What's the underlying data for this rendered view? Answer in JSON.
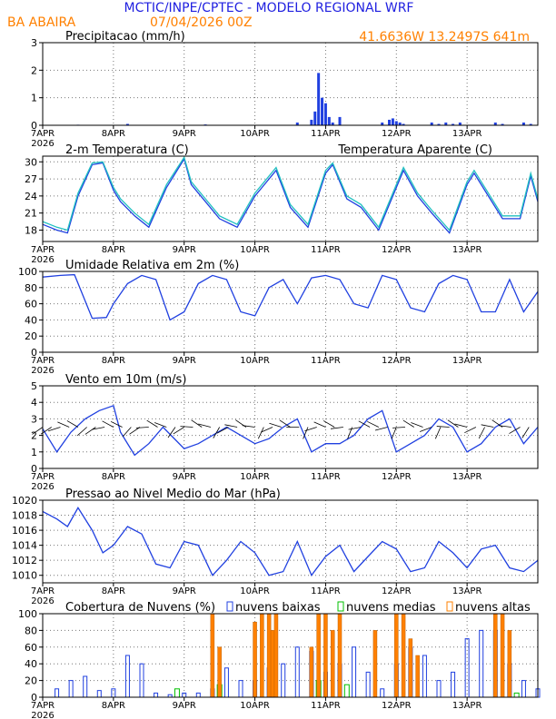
{
  "header": {
    "title": "MCTIC/INPE/CPTEC - MODELO REGIONAL WRF",
    "location": "BA ABAIRA",
    "run": "07/04/2026 00Z",
    "coords": "41.6636W 13.2497S 641m"
  },
  "colors": {
    "blue": "#2040e0",
    "cyan": "#20c0c0",
    "orange": "#ff8000",
    "green": "#00c000",
    "title_blue": "#2020e0"
  },
  "x_labels": [
    "7APR",
    "8APR",
    "9APR",
    "10APR",
    "11APR",
    "12APR",
    "13APR"
  ],
  "x_year": "2026",
  "chart_data": [
    {
      "type": "bar",
      "id": "precip",
      "title": "Precipitacao (mm/h)",
      "ylim": [
        0,
        3
      ],
      "yticks": [
        0,
        1,
        2,
        3
      ],
      "x": [
        0.5,
        1.2,
        2.3,
        3.6,
        3.8,
        3.85,
        3.9,
        3.95,
        4.0,
        4.05,
        4.1,
        4.2,
        4.8,
        4.9,
        4.95,
        5.0,
        5.05,
        5.1,
        5.5,
        5.6,
        5.7,
        5.8,
        5.9,
        6.4,
        6.5,
        6.8,
        6.9
      ],
      "values": [
        0.02,
        0.05,
        0.03,
        0.1,
        0.2,
        0.5,
        1.9,
        1.0,
        0.8,
        0.3,
        0.1,
        0.3,
        0.1,
        0.2,
        0.25,
        0.15,
        0.1,
        0.05,
        0.1,
        0.05,
        0.1,
        0.05,
        0.1,
        0.1,
        0.05,
        0.1,
        0.05
      ]
    },
    {
      "type": "line",
      "id": "temp",
      "title": "2-m Temperatura (C)",
      "legend_apparent": "Temperatura Aparente (C)",
      "ylim": [
        16,
        31
      ],
      "yticks": [
        18,
        21,
        24,
        27,
        30
      ],
      "series": [
        {
          "name": "Temperatura",
          "x": [
            0,
            0.1,
            0.2,
            0.35,
            0.5,
            0.7,
            0.85,
            1.0,
            1.1,
            1.3,
            1.5,
            1.75,
            2.0,
            2.1,
            2.3,
            2.5,
            2.75,
            3.0,
            3.1,
            3.3,
            3.5,
            3.75,
            4.0,
            4.1,
            4.3,
            4.5,
            4.75,
            5.0,
            5.1,
            5.3,
            5.5,
            5.75,
            6.0,
            6.1,
            6.3,
            6.5,
            6.75,
            6.9,
            7.0
          ],
          "values": [
            19.0,
            18.5,
            18.0,
            17.5,
            24.0,
            29.5,
            29.8,
            25.0,
            23.0,
            20.5,
            18.5,
            25.5,
            30.5,
            26.0,
            23.0,
            20.0,
            18.5,
            24.0,
            25.5,
            28.5,
            22.0,
            18.5,
            28.0,
            29.5,
            23.5,
            22.0,
            18.0,
            25.5,
            28.5,
            24.0,
            21.0,
            17.5,
            26.0,
            28.0,
            24.0,
            20.0,
            20.0,
            27.5,
            23.0
          ]
        },
        {
          "name": "Temperatura Aparente",
          "x": [
            0,
            0.1,
            0.2,
            0.35,
            0.5,
            0.7,
            0.85,
            1.0,
            1.1,
            1.3,
            1.5,
            1.75,
            2.0,
            2.1,
            2.3,
            2.5,
            2.75,
            3.0,
            3.1,
            3.3,
            3.5,
            3.75,
            4.0,
            4.1,
            4.3,
            4.5,
            4.75,
            5.0,
            5.1,
            5.3,
            5.5,
            5.75,
            6.0,
            6.1,
            6.3,
            6.5,
            6.75,
            6.9,
            7.0
          ],
          "values": [
            19.5,
            19.0,
            18.5,
            18.0,
            24.5,
            29.8,
            30.0,
            25.5,
            23.5,
            21.0,
            19.0,
            26.0,
            30.8,
            26.5,
            23.5,
            20.5,
            19.0,
            24.5,
            26.0,
            29.0,
            22.5,
            19.0,
            28.5,
            29.8,
            24.0,
            22.5,
            18.5,
            26.0,
            29.0,
            24.5,
            21.5,
            18.0,
            26.5,
            28.5,
            24.5,
            20.5,
            20.5,
            28.0,
            23.5
          ]
        }
      ]
    },
    {
      "type": "line",
      "id": "rh",
      "title": "Umidade Relativa em 2m (%)",
      "ylim": [
        0,
        100
      ],
      "yticks": [
        0,
        20,
        40,
        60,
        80,
        100
      ],
      "series": [
        {
          "name": "Umidade Relativa",
          "x": [
            0,
            0.25,
            0.45,
            0.7,
            0.9,
            1.0,
            1.2,
            1.4,
            1.6,
            1.8,
            2.0,
            2.2,
            2.4,
            2.6,
            2.8,
            3.0,
            3.2,
            3.4,
            3.6,
            3.8,
            4.0,
            4.2,
            4.4,
            4.6,
            4.8,
            5.0,
            5.2,
            5.4,
            5.6,
            5.8,
            6.0,
            6.2,
            6.4,
            6.6,
            6.8,
            7.0
          ],
          "values": [
            93,
            95,
            96,
            42,
            43,
            60,
            85,
            95,
            90,
            40,
            50,
            85,
            95,
            90,
            50,
            45,
            80,
            90,
            60,
            92,
            95,
            90,
            60,
            55,
            95,
            90,
            55,
            50,
            85,
            95,
            90,
            50,
            50,
            90,
            50,
            75
          ]
        }
      ]
    },
    {
      "type": "line",
      "id": "wind",
      "title": "Vento em 10m (m/s)",
      "ylim": [
        0,
        5
      ],
      "yticks": [
        0,
        1,
        2,
        3,
        4,
        5
      ],
      "series": [
        {
          "name": "Vento",
          "x": [
            0,
            0.2,
            0.4,
            0.6,
            0.8,
            1.0,
            1.1,
            1.3,
            1.5,
            1.7,
            2.0,
            2.2,
            2.4,
            2.6,
            2.8,
            3.0,
            3.2,
            3.4,
            3.6,
            3.8,
            4.0,
            4.2,
            4.4,
            4.6,
            4.8,
            5.0,
            5.2,
            5.4,
            5.6,
            5.8,
            6.0,
            6.2,
            6.4,
            6.6,
            6.8,
            7.0
          ],
          "values": [
            2.4,
            1.0,
            2.2,
            3.0,
            3.5,
            3.8,
            2.2,
            0.8,
            1.5,
            2.5,
            1.2,
            1.5,
            2.0,
            2.5,
            2.0,
            1.5,
            1.8,
            2.5,
            3.0,
            1.0,
            1.5,
            1.5,
            2.0,
            3.0,
            3.5,
            1.0,
            1.5,
            2.0,
            3.0,
            2.5,
            1.0,
            1.5,
            2.5,
            3.0,
            1.5,
            2.5
          ]
        }
      ]
    },
    {
      "type": "line",
      "id": "mslp",
      "title": "Pressao ao Nivel Medio do Mar (hPa)",
      "ylim": [
        1009,
        1020
      ],
      "yticks": [
        1010,
        1012,
        1014,
        1016,
        1018,
        1020
      ],
      "series": [
        {
          "name": "Pressao",
          "x": [
            0,
            0.2,
            0.35,
            0.5,
            0.7,
            0.85,
            1.0,
            1.2,
            1.4,
            1.6,
            1.8,
            2.0,
            2.2,
            2.4,
            2.6,
            2.8,
            3.0,
            3.2,
            3.4,
            3.6,
            3.8,
            4.0,
            4.2,
            4.4,
            4.6,
            4.8,
            5.0,
            5.2,
            5.4,
            5.6,
            5.8,
            6.0,
            6.2,
            6.4,
            6.6,
            6.8,
            7.0
          ],
          "values": [
            1018.5,
            1017.5,
            1016.5,
            1019.0,
            1016.0,
            1013.0,
            1014.0,
            1016.5,
            1015.5,
            1011.5,
            1011.0,
            1014.5,
            1014.0,
            1010.0,
            1012.0,
            1014.5,
            1013.0,
            1010.0,
            1010.5,
            1014.5,
            1010.0,
            1012.5,
            1014.0,
            1010.5,
            1012.5,
            1014.5,
            1013.5,
            1010.5,
            1011.0,
            1014.5,
            1013.0,
            1011.0,
            1013.5,
            1014.0,
            1011.0,
            1010.5,
            1012.0
          ]
        }
      ]
    },
    {
      "type": "bar",
      "id": "clouds",
      "title": "Cobertura de Nuvens (%)",
      "legend": [
        "nuvens baixas",
        "nuvens medias",
        "nuvens altas"
      ],
      "ylim": [
        0,
        100
      ],
      "yticks": [
        0,
        20,
        40,
        60,
        80,
        100
      ],
      "series": [
        {
          "name": "nuvens baixas",
          "x": [
            0.2,
            0.4,
            0.6,
            0.8,
            1.0,
            1.2,
            1.4,
            1.6,
            1.8,
            2.0,
            2.2,
            2.4,
            2.6,
            2.8,
            3.0,
            3.2,
            3.4,
            3.6,
            3.8,
            4.0,
            4.2,
            4.4,
            4.6,
            4.8,
            5.0,
            5.2,
            5.4,
            5.6,
            5.8,
            6.0,
            6.2,
            6.4,
            6.6,
            6.8,
            7.0
          ],
          "values": [
            10,
            20,
            25,
            8,
            10,
            50,
            40,
            5,
            3,
            5,
            5,
            10,
            35,
            20,
            20,
            35,
            40,
            60,
            55,
            30,
            40,
            60,
            30,
            10,
            40,
            60,
            50,
            20,
            30,
            70,
            80,
            80,
            40,
            20,
            10
          ]
        },
        {
          "name": "nuvens medias",
          "x": [
            1.9,
            2.5,
            3.9,
            4.3,
            6.7
          ],
          "values": [
            10,
            15,
            20,
            15,
            5
          ]
        },
        {
          "name": "nuvens altas",
          "x": [
            2.4,
            2.5,
            3.0,
            3.1,
            3.2,
            3.25,
            3.3,
            3.8,
            3.9,
            4.0,
            4.1,
            4.2,
            4.7,
            5.0,
            5.1,
            5.2,
            5.3,
            6.4,
            6.5,
            6.6
          ],
          "values": [
            100,
            60,
            90,
            100,
            100,
            80,
            100,
            60,
            100,
            100,
            80,
            100,
            80,
            100,
            100,
            70,
            50,
            100,
            100,
            80
          ]
        }
      ]
    }
  ]
}
